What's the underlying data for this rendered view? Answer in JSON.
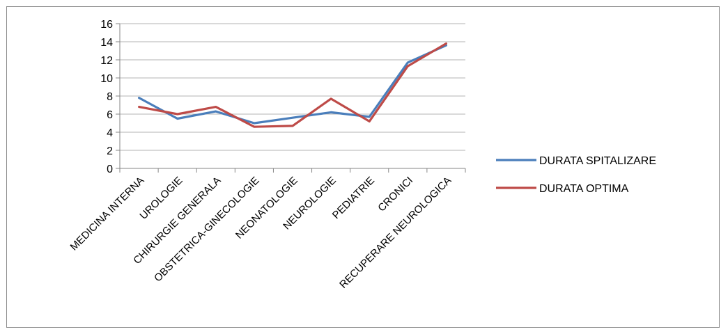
{
  "chart_data": {
    "type": "line",
    "title": "",
    "xlabel": "",
    "ylabel": "",
    "ylim": [
      0,
      16
    ],
    "yticks": [
      0,
      2,
      4,
      6,
      8,
      10,
      12,
      14,
      16
    ],
    "grid": true,
    "legend_position": "right",
    "categories": [
      "MEDICINA INTERNA",
      "UROLOGIE",
      "CHIRURGIE GENERALA",
      "OBSTETRICA-GINECOLOGIE",
      "NEONATOLOGIE",
      "NEUROLOGIE",
      "PEDIATRIE",
      "CRONICI",
      "RECUPERARE NEUROLOGICA"
    ],
    "series": [
      {
        "name": "DURATA SPITALIZARE",
        "color": "#4a7ebb",
        "values": [
          7.8,
          5.5,
          6.3,
          5.0,
          5.6,
          6.2,
          5.7,
          11.7,
          13.6
        ]
      },
      {
        "name": "DURATA OPTIMA",
        "color": "#be4b48",
        "values": [
          6.8,
          6.0,
          6.8,
          4.6,
          4.7,
          7.7,
          5.2,
          11.3,
          13.8
        ]
      }
    ]
  }
}
